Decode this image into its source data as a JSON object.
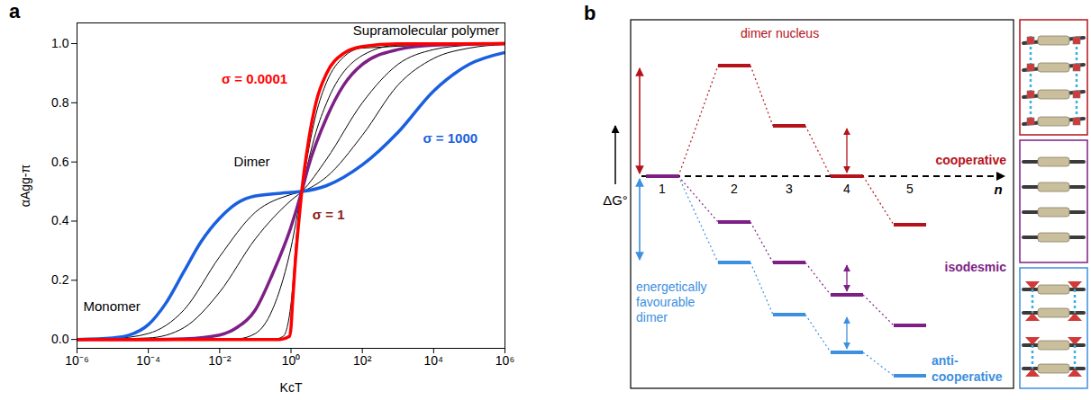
{
  "chart_data": {
    "type": "line",
    "panel_label": "a",
    "xlabel": "KcT",
    "ylabel": "αAgg-π",
    "log": "x",
    "grid": false,
    "xlim": [
      1e-06,
      1000000
    ],
    "xticks": [
      {
        "value": 1e-06,
        "label": "10⁻⁶"
      },
      {
        "value": 0.0001,
        "label": "10⁻⁴"
      },
      {
        "value": 0.01,
        "label": "10⁻²"
      },
      {
        "value": 1,
        "label": "10⁰"
      },
      {
        "value": 100,
        "label": "10²"
      },
      {
        "value": 10000,
        "label": "10⁴"
      },
      {
        "value": 1000000,
        "label": "10⁶"
      }
    ],
    "ylim": [
      -0.03,
      1.07
    ],
    "yticks": [
      {
        "value": 0,
        "label": "0.0"
      },
      {
        "value": 0.2,
        "label": "0.2"
      },
      {
        "value": 0.4,
        "label": "0.4"
      },
      {
        "value": 0.6,
        "label": "0.6"
      },
      {
        "value": 0.8,
        "label": "0.8"
      },
      {
        "value": 1,
        "label": "1.0"
      }
    ],
    "series": [
      {
        "color": "#000000",
        "x": [
          1e-06,
          0.3,
          0.6,
          1,
          1.5,
          2,
          3,
          5,
          10,
          30,
          100,
          1000000
        ],
        "values": [
          0,
          0,
          0.01,
          0.12,
          0.38,
          0.5,
          0.63,
          0.76,
          0.87,
          0.955,
          0.985,
          1
        ]
      },
      {
        "color": "#000000",
        "x": [
          1e-06,
          0.03,
          0.1,
          0.3,
          1,
          2,
          5,
          10,
          100,
          1000,
          1000000
        ],
        "values": [
          0,
          0.002,
          0.02,
          0.1,
          0.31,
          0.5,
          0.7,
          0.8,
          0.96,
          0.995,
          1
        ]
      },
      {
        "color": "#000000",
        "x": [
          1e-06,
          0.0001,
          0.001,
          0.01,
          0.1,
          1,
          2,
          10,
          100,
          1000,
          10000,
          100000,
          1000000
        ],
        "values": [
          0,
          0.005,
          0.04,
          0.16,
          0.34,
          0.47,
          0.5,
          0.61,
          0.8,
          0.93,
          0.98,
          0.995,
          1
        ]
      },
      {
        "color": "#000000",
        "x": [
          1e-06,
          1e-05,
          0.0001,
          0.001,
          0.01,
          0.1,
          1,
          2,
          10,
          100,
          1000,
          10000,
          100000,
          1000000
        ],
        "values": [
          0,
          0.003,
          0.02,
          0.1,
          0.28,
          0.43,
          0.49,
          0.5,
          0.55,
          0.69,
          0.86,
          0.95,
          0.985,
          0.997
        ]
      },
      {
        "color": "#7e1f86",
        "x": [
          1e-06,
          0.0001,
          0.001,
          0.01,
          0.03,
          0.1,
          0.3,
          1,
          2,
          3,
          10,
          30,
          100,
          1000,
          10000,
          1000000
        ],
        "values": [
          0,
          0,
          0.002,
          0.015,
          0.04,
          0.1,
          0.22,
          0.38,
          0.5,
          0.58,
          0.75,
          0.86,
          0.93,
          0.98,
          0.995,
          1
        ]
      },
      {
        "color": "#1a5fe0",
        "x": [
          1e-06,
          1e-05,
          3e-05,
          0.0001,
          0.0003,
          0.001,
          0.003,
          0.01,
          0.03,
          0.1,
          1,
          2,
          10,
          100,
          1000,
          10000,
          100000,
          1000000
        ],
        "values": [
          0,
          0.005,
          0.015,
          0.05,
          0.12,
          0.23,
          0.33,
          0.41,
          0.46,
          0.485,
          0.497,
          0.5,
          0.52,
          0.59,
          0.7,
          0.84,
          0.93,
          0.97
        ]
      },
      {
        "color": "#ff0000",
        "x": [
          1e-06,
          0.01,
          0.5,
          0.9,
          1,
          1.1,
          1.3,
          1.6,
          2,
          3,
          5,
          10,
          30,
          100,
          1000,
          1000000
        ],
        "values": [
          0,
          0,
          0,
          0.01,
          0.04,
          0.12,
          0.25,
          0.38,
          0.5,
          0.66,
          0.8,
          0.9,
          0.967,
          0.99,
          0.999,
          1
        ]
      }
    ],
    "annotations": [
      {
        "text": "Supramolecular polymer",
        "x": 700000,
        "y": 1.045
      },
      {
        "text": "σ = 0.0001",
        "x": 0.8,
        "y": 0.88,
        "color": "#ff0000"
      },
      {
        "text": "σ = 1000",
        "x": 5000,
        "y": 0.68,
        "color": "#1a5fe0"
      },
      {
        "text": "Dimer",
        "x": 0.08,
        "y": 0.6
      },
      {
        "text": "σ = 1",
        "x": 4,
        "y": 0.42,
        "color": "#8b1a1a"
      },
      {
        "text": "Monomer",
        "x": 1.5e-06,
        "y": 0.11
      }
    ]
  },
  "diagram": {
    "panel_label": "b",
    "y_axis_label": "ΔG°",
    "x_axis_label": "n",
    "n_values": [
      1,
      2,
      3,
      4,
      5
    ],
    "pathways": [
      {
        "name": "cooperative",
        "color": "#b5121b",
        "annotation": "dimer nucleus"
      },
      {
        "name": "isodesmic",
        "color": "#7e1f86"
      },
      {
        "name": "anti-cooperative",
        "color": "#3d8fe0",
        "annotation": "energetically favourable dimer"
      }
    ]
  }
}
